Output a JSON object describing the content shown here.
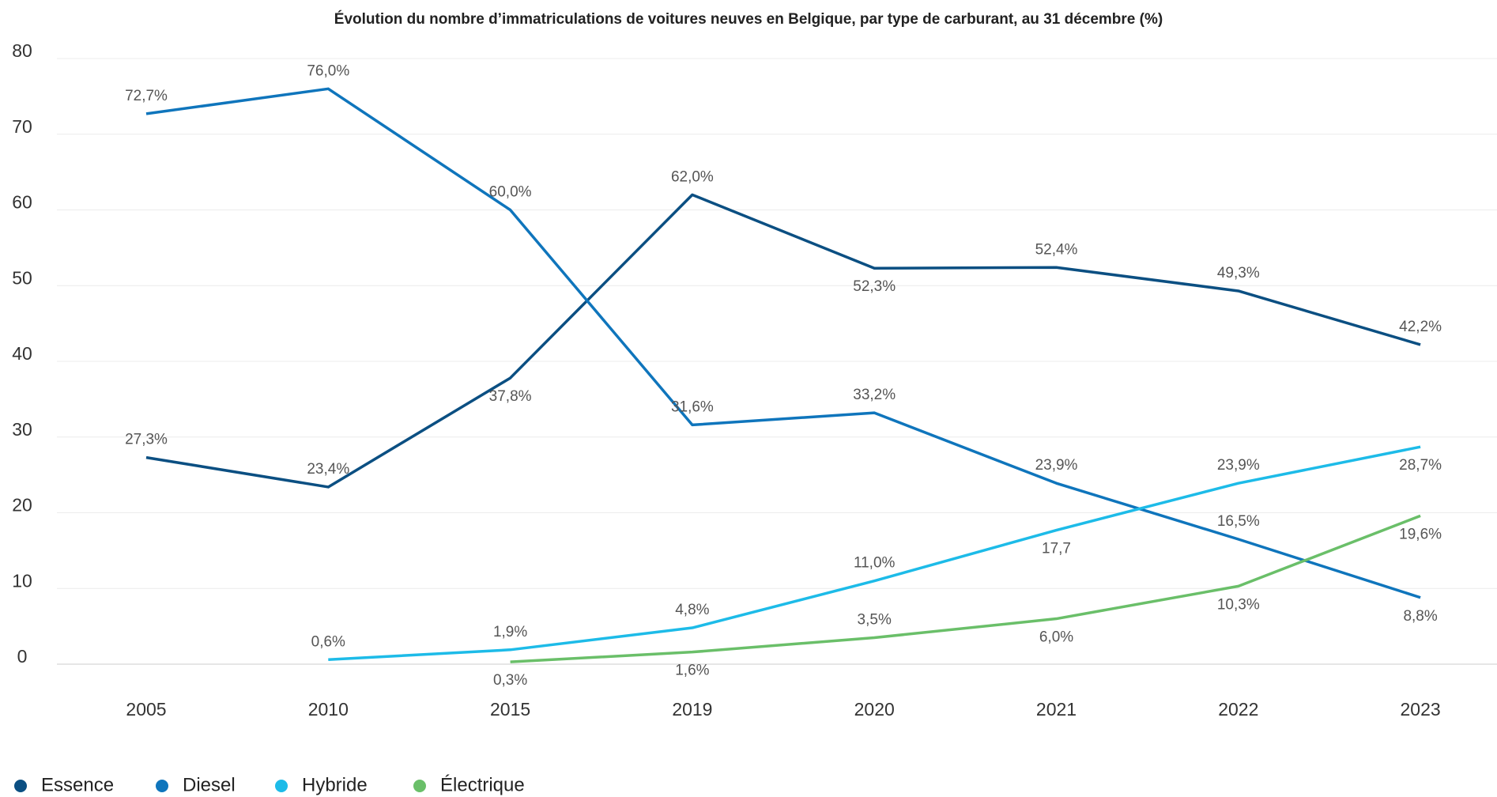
{
  "chart_data": {
    "type": "line",
    "title": "Évolution du nombre d’immatriculations de voitures neuves en Belgique, par type de carburant, au 31 décembre (%)",
    "categories": [
      "2005",
      "2010",
      "2015",
      "2019",
      "2020",
      "2021",
      "2022",
      "2023"
    ],
    "ylim": [
      0,
      80
    ],
    "yticks": [
      0,
      10,
      20,
      30,
      40,
      50,
      60,
      70,
      80
    ],
    "grid": true,
    "legend": "bottom-left",
    "series": [
      {
        "name": "Essence",
        "color": "#0b4f82",
        "values": [
          27.3,
          23.4,
          37.8,
          62.0,
          52.3,
          52.4,
          49.3,
          42.2
        ],
        "value_labels": [
          "27,3%",
          "23,4%",
          "37,8%",
          "62,0%",
          "52,3%",
          "52,4%",
          "49,3%",
          "42,2%"
        ]
      },
      {
        "name": "Diesel",
        "color": "#0f75bc",
        "values": [
          72.7,
          76.0,
          60.0,
          31.6,
          33.2,
          23.9,
          16.5,
          8.8
        ],
        "value_labels": [
          "72,7%",
          "76,0%",
          "60,0%",
          "31,6%",
          "33,2%",
          "23,9%",
          "16,5%",
          "8,8%"
        ]
      },
      {
        "name": "Hybride",
        "color": "#1dbbe8",
        "values": [
          null,
          0.6,
          1.9,
          4.8,
          11.0,
          17.7,
          23.9,
          28.7
        ],
        "value_labels": [
          null,
          "0,6%",
          "1,9%",
          "4,8%",
          "11,0%",
          "17,7",
          "23,9%",
          "28,7%"
        ]
      },
      {
        "name": "Électrique",
        "color": "#6abf69",
        "values": [
          null,
          null,
          0.3,
          1.6,
          3.5,
          6.0,
          10.3,
          19.6
        ],
        "value_labels": [
          null,
          null,
          "0,3%",
          "1,6%",
          "3,5%",
          "6,0%",
          "10,3%",
          "19,6%"
        ]
      }
    ]
  }
}
